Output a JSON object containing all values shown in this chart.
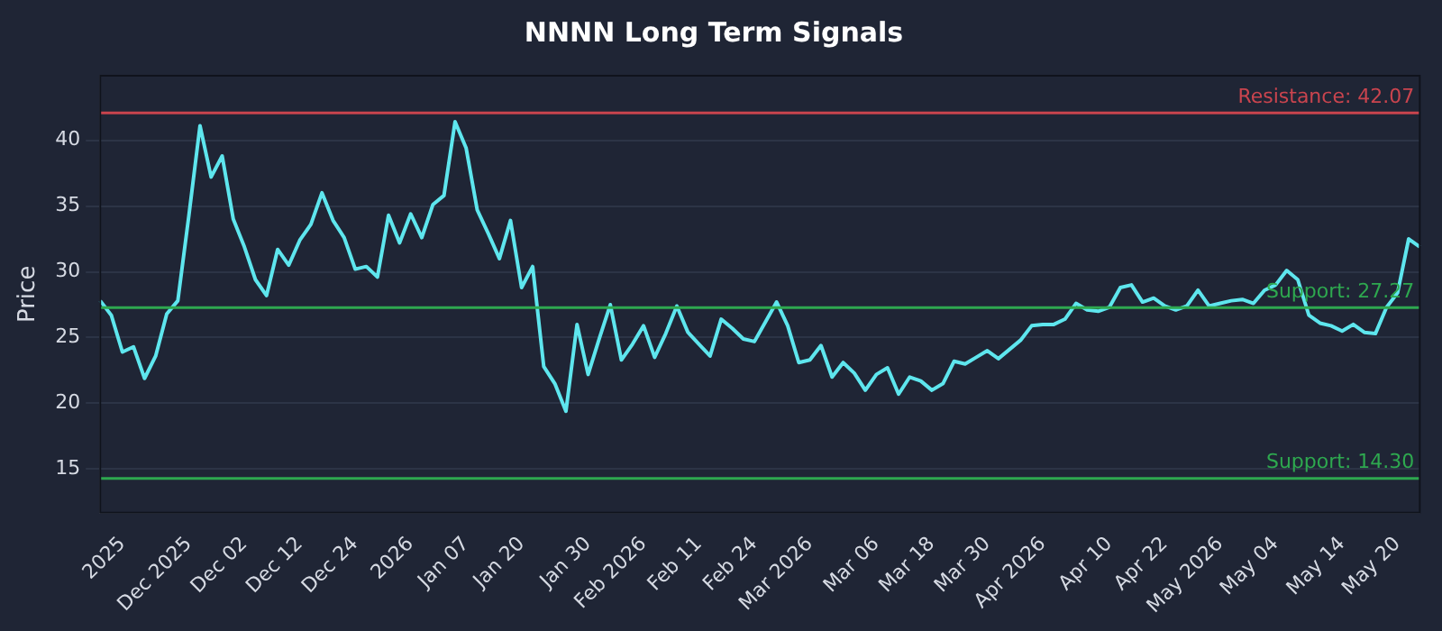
{
  "chart_data": {
    "type": "line",
    "title": "NNNN Long Term Signals",
    "ylabel": "Price",
    "categories": [
      null,
      null,
      "2025",
      null,
      null,
      null,
      null,
      null,
      "Dec 2025",
      null,
      null,
      null,
      null,
      "Dec 02",
      null,
      null,
      null,
      null,
      "Dec 12",
      null,
      null,
      null,
      null,
      "Dec 24",
      null,
      null,
      null,
      null,
      "2026",
      null,
      null,
      null,
      null,
      "Jan 07",
      null,
      null,
      null,
      null,
      "Jan 20",
      null,
      null,
      null,
      null,
      null,
      "Jan 30",
      null,
      null,
      null,
      null,
      "Feb 2026",
      null,
      null,
      null,
      null,
      "Feb 11",
      null,
      null,
      null,
      null,
      "Feb 24",
      null,
      null,
      null,
      null,
      "Mar 2026",
      null,
      null,
      null,
      null,
      null,
      "Mar 06",
      null,
      null,
      null,
      null,
      "Mar 18",
      null,
      null,
      null,
      null,
      "Mar 30",
      null,
      null,
      null,
      null,
      "Apr 2026",
      null,
      null,
      null,
      null,
      null,
      "Apr 10",
      null,
      null,
      null,
      null,
      "Apr 22",
      null,
      null,
      null,
      null,
      "May 2026",
      null,
      null,
      null,
      null,
      "May 04",
      null,
      null,
      null,
      null,
      null,
      "May 14",
      null,
      null,
      null,
      null,
      "May 20",
      null,
      null
    ],
    "series": [
      {
        "color": "#5ee6ee",
        "values": [
          27.8,
          26.7,
          23.9,
          24.3,
          21.9,
          23.6,
          26.8,
          27.8,
          34.3,
          41.1,
          37.2,
          38.8,
          34.0,
          31.9,
          29.4,
          28.2,
          31.7,
          30.5,
          32.4,
          33.6,
          36.0,
          33.9,
          32.6,
          30.2,
          30.4,
          29.6,
          34.3,
          32.2,
          34.4,
          32.6,
          35.1,
          35.8,
          41.4,
          39.4,
          34.7,
          32.9,
          31.0,
          33.9,
          28.8,
          30.4,
          22.8,
          21.5,
          19.4,
          26.0,
          22.2,
          24.9,
          27.5,
          23.3,
          24.5,
          25.9,
          23.5,
          25.3,
          27.4,
          25.4,
          24.5,
          23.6,
          26.4,
          25.7,
          24.9,
          24.7,
          26.2,
          27.7,
          25.9,
          23.1,
          23.3,
          24.4,
          22.0,
          23.1,
          22.3,
          21.0,
          22.2,
          22.7,
          20.7,
          22.0,
          21.7,
          21.0,
          21.5,
          23.2,
          23.0,
          23.5,
          24.0,
          23.4,
          24.1,
          24.8,
          25.9,
          26.0,
          26.0,
          26.4,
          27.6,
          27.1,
          27.0,
          27.3,
          28.8,
          29.0,
          27.7,
          28.0,
          27.4,
          27.1,
          27.4,
          28.6,
          27.4,
          27.6,
          27.8,
          27.9,
          27.6,
          28.6,
          29.0,
          30.1,
          29.4,
          26.7,
          26.1,
          25.9,
          25.5,
          26.0,
          25.4,
          25.3,
          27.3,
          28.4,
          32.5,
          31.9
        ]
      }
    ],
    "ylim": [
      11.7,
      44.9
    ],
    "yticks": [
      15,
      20,
      25,
      30,
      35,
      40
    ],
    "grid": "y",
    "marker": "none",
    "line_style": "solid",
    "legend": false,
    "ref_lines": [
      {
        "axis": "y",
        "value": 42.07,
        "label": "Resistance: 42.07",
        "color": "#c9444e"
      },
      {
        "axis": "y",
        "value": 27.27,
        "label": "Support: 27.27",
        "color": "#2ea84f"
      },
      {
        "axis": "y",
        "value": 14.3,
        "label": "Support: 14.30",
        "color": "#2ea84f"
      }
    ]
  }
}
